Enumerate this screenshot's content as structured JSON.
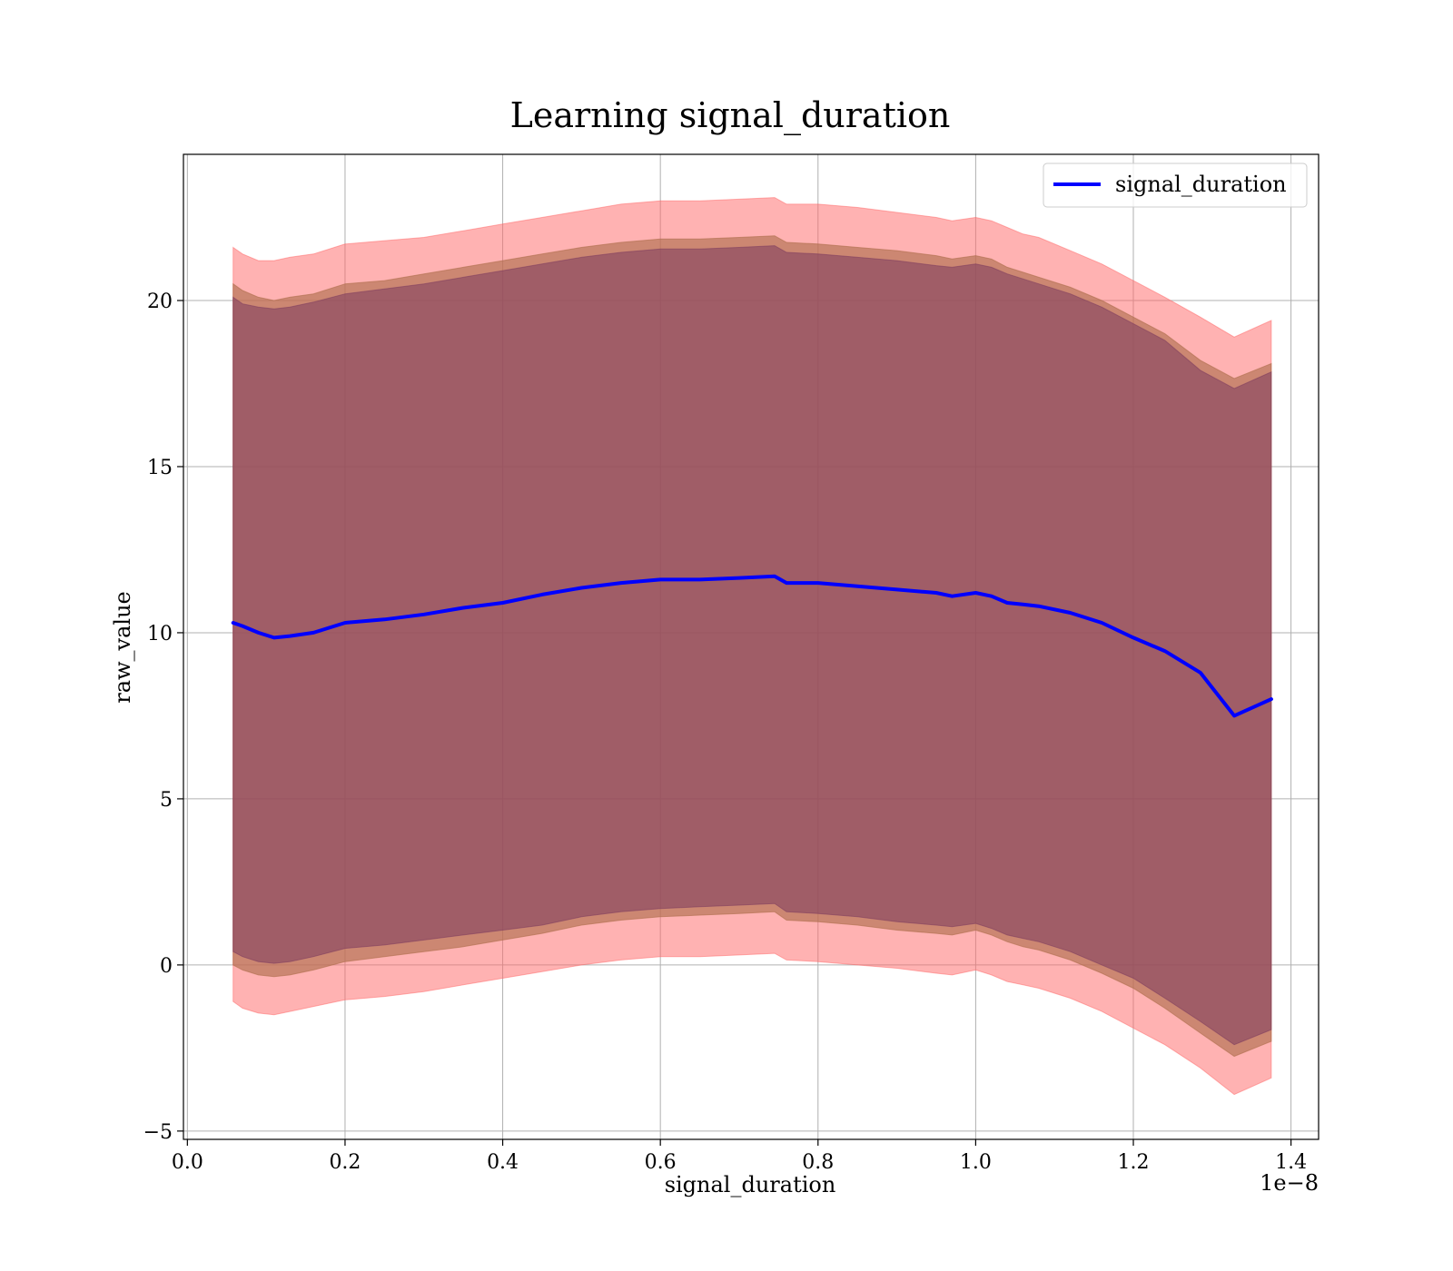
{
  "chart_data": {
    "type": "line",
    "title": "Learning signal_duration",
    "xlabel": "signal_duration",
    "ylabel": "raw_value",
    "x_offset_label": "1e−8",
    "xlim": [
      -0.005,
      1.435
    ],
    "ylim": [
      -5.25,
      24.4
    ],
    "x_ticks": [
      0.0,
      0.2,
      0.4,
      0.6,
      0.8,
      1.0,
      1.2,
      1.4
    ],
    "x_tick_labels": [
      "0.0",
      "0.2",
      "0.4",
      "0.6",
      "0.8",
      "1.0",
      "1.2",
      "1.4"
    ],
    "y_ticks": [
      -5,
      0,
      5,
      10,
      15,
      20
    ],
    "y_tick_labels": [
      "−5",
      "0",
      "5",
      "10",
      "15",
      "20"
    ],
    "grid": true,
    "legend_position": "top-right",
    "x": [
      0.058,
      0.07,
      0.09,
      0.11,
      0.13,
      0.16,
      0.2,
      0.25,
      0.3,
      0.35,
      0.4,
      0.45,
      0.5,
      0.55,
      0.6,
      0.65,
      0.7,
      0.745,
      0.76,
      0.8,
      0.85,
      0.9,
      0.95,
      0.97,
      1.0,
      1.02,
      1.04,
      1.06,
      1.08,
      1.12,
      1.16,
      1.2,
      1.24,
      1.285,
      1.328,
      1.375
    ],
    "series": [
      {
        "name": "signal_duration",
        "color": "#0000ff",
        "values": [
          10.3,
          10.2,
          10.0,
          9.85,
          9.9,
          10.0,
          10.3,
          10.4,
          10.55,
          10.75,
          10.9,
          11.15,
          11.35,
          11.5,
          11.6,
          11.6,
          11.65,
          11.7,
          11.5,
          11.5,
          11.4,
          11.3,
          11.2,
          11.1,
          11.2,
          11.1,
          10.9,
          10.85,
          10.8,
          10.6,
          10.3,
          9.85,
          9.45,
          8.8,
          7.5,
          8.0
        ]
      }
    ],
    "bands": [
      {
        "color": "#ff6666",
        "opacity": 0.5,
        "upper": [
          21.6,
          21.4,
          21.2,
          21.2,
          21.3,
          21.4,
          21.7,
          21.8,
          21.9,
          22.1,
          22.3,
          22.5,
          22.7,
          22.9,
          23.0,
          23.0,
          23.05,
          23.1,
          22.9,
          22.9,
          22.8,
          22.65,
          22.5,
          22.4,
          22.5,
          22.4,
          22.2,
          22.0,
          21.9,
          21.5,
          21.1,
          20.6,
          20.1,
          19.5,
          18.9,
          19.4
        ],
        "lower": [
          -1.1,
          -1.3,
          -1.45,
          -1.5,
          -1.4,
          -1.25,
          -1.05,
          -0.95,
          -0.8,
          -0.6,
          -0.4,
          -0.2,
          0.0,
          0.15,
          0.25,
          0.25,
          0.3,
          0.35,
          0.15,
          0.1,
          0.0,
          -0.1,
          -0.25,
          -0.3,
          -0.15,
          -0.3,
          -0.5,
          -0.6,
          -0.7,
          -1.0,
          -1.4,
          -1.9,
          -2.4,
          -3.1,
          -3.9,
          -3.4
        ]
      },
      {
        "color": "#b07050",
        "opacity": 0.65,
        "upper": [
          20.5,
          20.3,
          20.1,
          20.0,
          20.1,
          20.2,
          20.5,
          20.6,
          20.8,
          21.0,
          21.2,
          21.4,
          21.6,
          21.75,
          21.85,
          21.85,
          21.9,
          21.95,
          21.75,
          21.7,
          21.6,
          21.5,
          21.35,
          21.25,
          21.35,
          21.25,
          21.0,
          20.85,
          20.7,
          20.4,
          20.0,
          19.5,
          19.0,
          18.2,
          17.65,
          18.1
        ],
        "lower": [
          0.0,
          -0.15,
          -0.3,
          -0.35,
          -0.3,
          -0.15,
          0.1,
          0.25,
          0.4,
          0.55,
          0.75,
          0.95,
          1.2,
          1.35,
          1.45,
          1.5,
          1.55,
          1.6,
          1.35,
          1.3,
          1.2,
          1.05,
          0.95,
          0.9,
          1.05,
          0.9,
          0.7,
          0.55,
          0.45,
          0.15,
          -0.25,
          -0.7,
          -1.3,
          -2.05,
          -2.75,
          -2.3
        ]
      },
      {
        "color": "#7b3a5e",
        "opacity": 0.55,
        "upper": [
          20.1,
          19.9,
          19.8,
          19.75,
          19.8,
          19.95,
          20.2,
          20.35,
          20.5,
          20.7,
          20.9,
          21.1,
          21.3,
          21.45,
          21.55,
          21.55,
          21.6,
          21.65,
          21.45,
          21.4,
          21.3,
          21.2,
          21.05,
          21.0,
          21.1,
          21.0,
          20.8,
          20.65,
          20.5,
          20.2,
          19.8,
          19.3,
          18.8,
          17.9,
          17.35,
          17.85
        ],
        "lower": [
          0.4,
          0.25,
          0.1,
          0.05,
          0.1,
          0.25,
          0.5,
          0.6,
          0.75,
          0.9,
          1.05,
          1.2,
          1.45,
          1.6,
          1.7,
          1.75,
          1.8,
          1.85,
          1.6,
          1.55,
          1.45,
          1.3,
          1.2,
          1.15,
          1.25,
          1.1,
          0.9,
          0.8,
          0.7,
          0.4,
          0.0,
          -0.4,
          -1.0,
          -1.7,
          -2.4,
          -1.95
        ]
      }
    ]
  }
}
